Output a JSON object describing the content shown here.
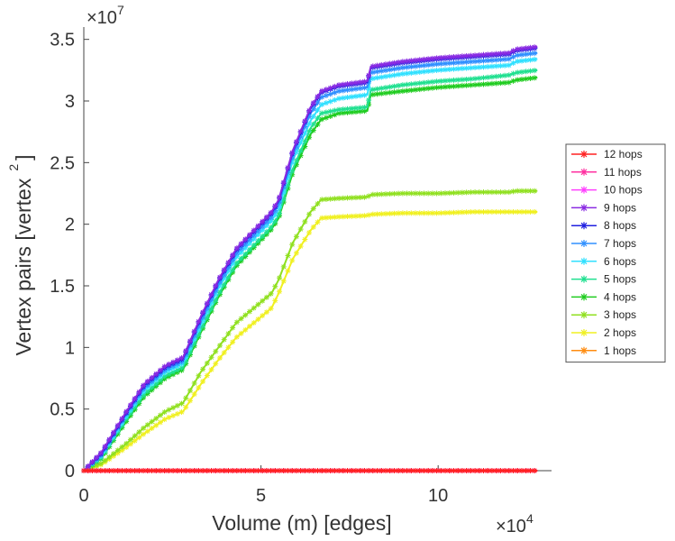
{
  "chart_data": {
    "type": "line",
    "title": "",
    "xlabel": "Volume (m) [edges]",
    "ylabel": "Vertex pairs [vertex",
    "ylabel_sup": "2",
    "ylabel_close": "]",
    "x_multiplier": {
      "base": "×10",
      "exp": "4"
    },
    "y_multiplier": {
      "base": "×10",
      "exp": "7"
    },
    "xlim": [
      0,
      13.2
    ],
    "ylim": [
      0,
      3.6
    ],
    "xticks": [
      0,
      5,
      10
    ],
    "xtick_labels": [
      "0",
      "5",
      "10"
    ],
    "yticks": [
      0,
      0.5,
      1,
      1.5,
      2,
      2.5,
      3,
      3.5
    ],
    "ytick_labels": [
      "0",
      "0.5",
      "1",
      "1.5",
      "2",
      "2.5",
      "3",
      "3.5"
    ],
    "legend_position": "right",
    "series": [
      {
        "name": "12 hops",
        "color": "#ff2020",
        "x": [
          0,
          12.8
        ],
        "y": [
          0,
          0
        ]
      },
      {
        "name": "11 hops",
        "color": "#ff30a0",
        "x": [
          0,
          12.8
        ],
        "y": [
          0,
          0
        ]
      },
      {
        "name": "10 hops",
        "color": "#ff40ff",
        "x": [
          0,
          12.8
        ],
        "y": [
          0,
          0
        ]
      },
      {
        "name": "9 hops",
        "color": "#8a2be2",
        "x": [
          0,
          0.5,
          1.2,
          1.7,
          2.3,
          2.8,
          3.3,
          3.8,
          4.3,
          4.8,
          5.3,
          5.5,
          5.9,
          6.4,
          6.7,
          7.2,
          8.0,
          8.1,
          9.0,
          10.0,
          11.0,
          12.0,
          12.2,
          12.8
        ],
        "y": [
          0,
          0.15,
          0.48,
          0.7,
          0.85,
          0.92,
          1.25,
          1.55,
          1.8,
          1.95,
          2.1,
          2.2,
          2.6,
          2.95,
          3.08,
          3.13,
          3.16,
          3.28,
          3.32,
          3.35,
          3.37,
          3.39,
          3.42,
          3.44
        ]
      },
      {
        "name": "8 hops",
        "color": "#2020e0",
        "x": [
          0,
          0.5,
          1.2,
          1.7,
          2.3,
          2.8,
          3.3,
          3.8,
          4.3,
          4.8,
          5.3,
          5.5,
          5.9,
          6.4,
          6.7,
          7.2,
          8.0,
          8.1,
          9.0,
          10.0,
          11.0,
          12.0,
          12.2,
          12.8
        ],
        "y": [
          0,
          0.14,
          0.47,
          0.69,
          0.84,
          0.91,
          1.24,
          1.54,
          1.79,
          1.94,
          2.09,
          2.19,
          2.59,
          2.94,
          3.07,
          3.12,
          3.15,
          3.27,
          3.31,
          3.34,
          3.36,
          3.38,
          3.41,
          3.43
        ]
      },
      {
        "name": "7 hops",
        "color": "#3090ff",
        "x": [
          0,
          0.5,
          1.2,
          1.7,
          2.3,
          2.8,
          3.3,
          3.8,
          4.3,
          4.8,
          5.3,
          5.5,
          5.9,
          6.4,
          6.7,
          7.2,
          8.0,
          8.1,
          9.0,
          10.0,
          11.0,
          12.0,
          12.2,
          12.8
        ],
        "y": [
          0,
          0.13,
          0.46,
          0.67,
          0.82,
          0.89,
          1.21,
          1.51,
          1.76,
          1.91,
          2.06,
          2.16,
          2.56,
          2.9,
          3.03,
          3.08,
          3.11,
          3.23,
          3.27,
          3.3,
          3.32,
          3.34,
          3.37,
          3.39
        ]
      },
      {
        "name": "6 hops",
        "color": "#30e0ff",
        "x": [
          0,
          0.5,
          1.2,
          1.7,
          2.3,
          2.8,
          3.3,
          3.8,
          4.3,
          4.8,
          5.3,
          5.5,
          5.9,
          6.4,
          6.7,
          7.2,
          8.0,
          8.1,
          9.0,
          10.0,
          11.0,
          12.0,
          12.2,
          12.8
        ],
        "y": [
          0,
          0.12,
          0.44,
          0.65,
          0.8,
          0.87,
          1.18,
          1.48,
          1.73,
          1.88,
          2.03,
          2.12,
          2.52,
          2.84,
          2.97,
          3.02,
          3.05,
          3.18,
          3.22,
          3.25,
          3.27,
          3.29,
          3.32,
          3.34
        ]
      },
      {
        "name": "5 hops",
        "color": "#20e090",
        "x": [
          0,
          0.5,
          1.2,
          1.7,
          2.3,
          2.8,
          3.3,
          3.8,
          4.3,
          4.8,
          5.3,
          5.5,
          5.9,
          6.4,
          6.7,
          7.2,
          8.0,
          8.1,
          9.0,
          10.0,
          11.0,
          12.0,
          12.2,
          12.8
        ],
        "y": [
          0,
          0.11,
          0.42,
          0.62,
          0.77,
          0.84,
          1.14,
          1.43,
          1.68,
          1.83,
          1.98,
          2.07,
          2.45,
          2.78,
          2.9,
          2.93,
          2.95,
          3.09,
          3.13,
          3.16,
          3.18,
          3.21,
          3.23,
          3.25
        ]
      },
      {
        "name": "4 hops",
        "color": "#20cc20",
        "x": [
          0,
          0.5,
          1.2,
          1.7,
          2.3,
          2.8,
          3.3,
          3.8,
          4.3,
          4.8,
          5.3,
          5.5,
          5.9,
          6.4,
          6.7,
          7.2,
          8.0,
          8.1,
          9.0,
          10.0,
          11.0,
          12.0,
          12.2,
          12.8
        ],
        "y": [
          0,
          0.1,
          0.4,
          0.6,
          0.75,
          0.82,
          1.12,
          1.41,
          1.66,
          1.81,
          1.96,
          2.05,
          2.42,
          2.73,
          2.85,
          2.9,
          2.92,
          3.05,
          3.08,
          3.11,
          3.13,
          3.15,
          3.17,
          3.19
        ]
      },
      {
        "name": "3 hops",
        "color": "#90e020",
        "x": [
          0,
          0.5,
          1.2,
          1.7,
          2.3,
          2.8,
          3.3,
          3.8,
          4.3,
          4.8,
          5.3,
          5.5,
          5.9,
          6.4,
          6.7,
          7.2,
          8.0,
          8.1,
          9.0,
          10.0,
          11.0,
          12.0,
          12.2,
          12.8
        ],
        "y": [
          0,
          0.06,
          0.22,
          0.35,
          0.48,
          0.55,
          0.8,
          1.0,
          1.2,
          1.32,
          1.44,
          1.55,
          1.85,
          2.1,
          2.2,
          2.21,
          2.22,
          2.24,
          2.25,
          2.25,
          2.26,
          2.26,
          2.27,
          2.27
        ]
      },
      {
        "name": "2 hops",
        "color": "#f0f020",
        "x": [
          0,
          0.5,
          1.2,
          1.7,
          2.3,
          2.8,
          3.3,
          3.8,
          4.3,
          4.8,
          5.3,
          5.5,
          5.9,
          6.4,
          6.7,
          7.2,
          8.0,
          8.1,
          9.0,
          10.0,
          11.0,
          12.0,
          12.2,
          12.8
        ],
        "y": [
          0,
          0.05,
          0.19,
          0.3,
          0.42,
          0.48,
          0.7,
          0.9,
          1.08,
          1.2,
          1.32,
          1.44,
          1.72,
          1.95,
          2.05,
          2.06,
          2.07,
          2.08,
          2.09,
          2.09,
          2.1,
          2.1,
          2.1,
          2.1
        ]
      },
      {
        "name": "1 hops",
        "color": "#ff8c10",
        "x": [
          0,
          12.8
        ],
        "y": [
          0,
          0
        ]
      }
    ]
  }
}
